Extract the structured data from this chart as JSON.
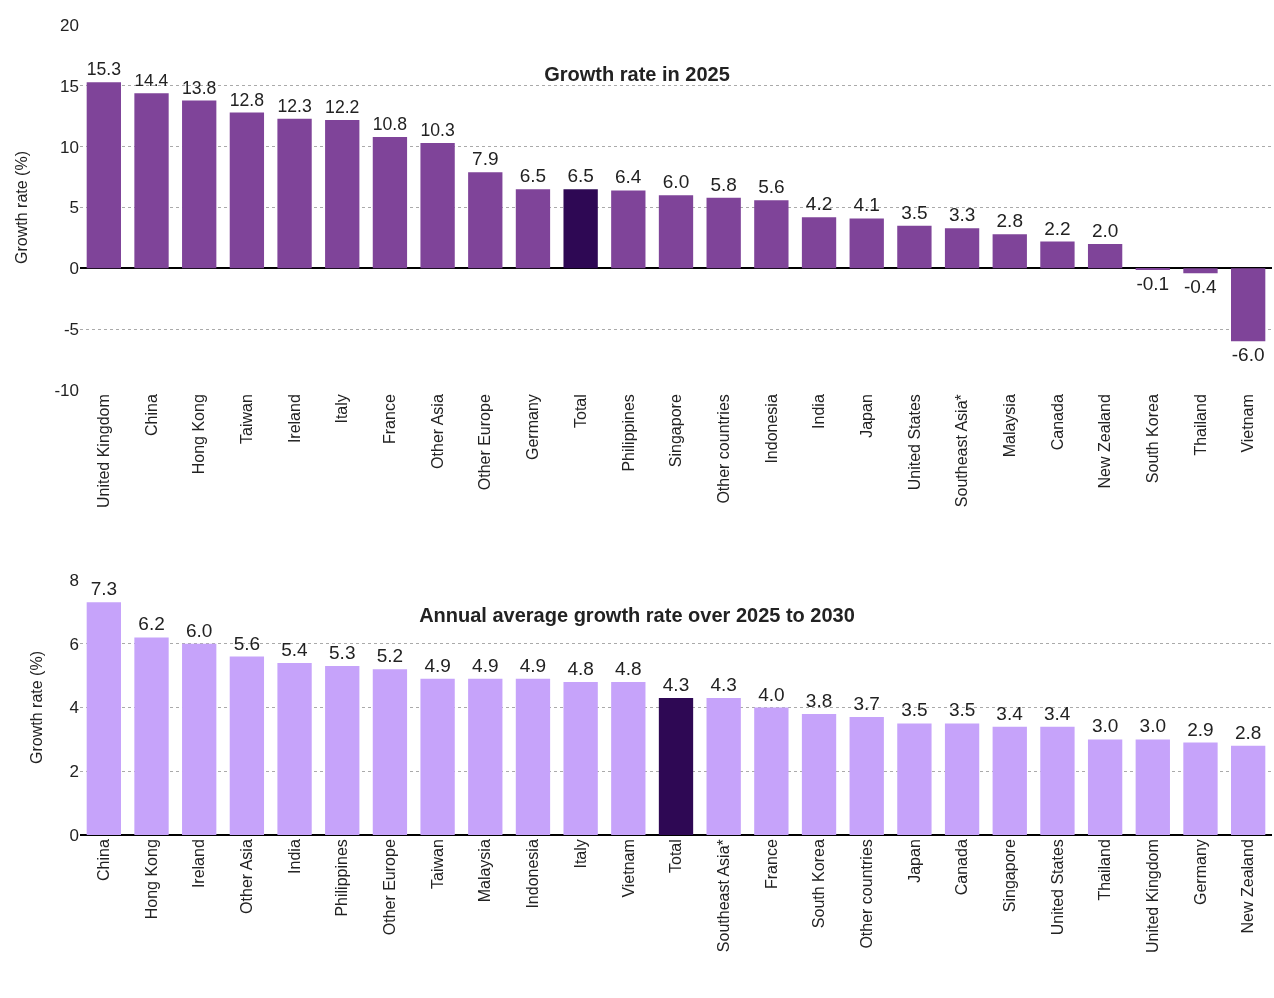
{
  "chart_data": [
    {
      "type": "bar",
      "title": "Growth rate in 2025",
      "ylabel": "Growth rate (%)",
      "categories": [
        "United Kingdom",
        "China",
        "Hong Kong",
        "Taiwan",
        "Ireland",
        "Italy",
        "France",
        "Other Asia",
        "Other Europe",
        "Germany",
        "Total",
        "Philippines",
        "Singapore",
        "Other countries",
        "Indonesia",
        "India",
        "Japan",
        "United States",
        "Southeast Asia*",
        "Malaysia",
        "Canada",
        "New Zealand",
        "South Korea",
        "Thailand",
        "Vietnam"
      ],
      "values": [
        15.3,
        14.4,
        13.8,
        12.8,
        12.3,
        12.2,
        10.8,
        10.3,
        7.9,
        6.5,
        6.5,
        6.4,
        6.0,
        5.8,
        5.6,
        4.2,
        4.1,
        3.5,
        3.3,
        2.8,
        2.2,
        2.0,
        -0.1,
        -0.4,
        -6.0
      ],
      "value_labels": [
        "15.3",
        "14.4",
        "13.8",
        "12.8",
        "12.3",
        "12.2",
        "10.8",
        "10.3",
        "7.9",
        "6.5",
        "6.5",
        "6.4",
        "6.0",
        "5.8",
        "5.6",
        "4.2",
        "4.1",
        "3.5",
        "3.3",
        "2.8",
        "2.2",
        "2.0",
        "-0.1",
        "-0.4",
        "-6.0"
      ],
      "colors": [
        "#7f4499",
        "#7f4499",
        "#7f4499",
        "#7f4499",
        "#7f4499",
        "#7f4499",
        "#7f4499",
        "#7f4499",
        "#7f4499",
        "#7f4499",
        "#2e0854",
        "#7f4499",
        "#7f4499",
        "#7f4499",
        "#7f4499",
        "#7f4499",
        "#7f4499",
        "#7f4499",
        "#7f4499",
        "#7f4499",
        "#7f4499",
        "#7f4499",
        "#7f4499",
        "#7f4499",
        "#7f4499"
      ],
      "ylim": [
        -10,
        20
      ],
      "yticks": [
        -10,
        -5,
        0,
        5,
        10,
        15,
        20
      ],
      "grid": "y"
    },
    {
      "type": "bar",
      "title": "Annual average growth rate over 2025 to 2030",
      "ylabel": "Growth rate (%)",
      "categories": [
        "China",
        "Hong Kong",
        "Ireland",
        "Other Asia",
        "India",
        "Philippines",
        "Other Europe",
        "Taiwan",
        "Malaysia",
        "Indonesia",
        "Italy",
        "Vietnam",
        "Total",
        "Southeast Asia*",
        "France",
        "South Korea",
        "Other countries",
        "Japan",
        "Canada",
        "Singapore",
        "United States",
        "Thailand",
        "United Kingdom",
        "Germany",
        "New Zealand"
      ],
      "values": [
        7.3,
        6.2,
        6.0,
        5.6,
        5.4,
        5.3,
        5.2,
        4.9,
        4.9,
        4.9,
        4.8,
        4.8,
        4.3,
        4.3,
        4.0,
        3.8,
        3.7,
        3.5,
        3.5,
        3.4,
        3.4,
        3.0,
        3.0,
        2.9,
        2.8
      ],
      "value_labels": [
        "7.3",
        "6.2",
        "6.0",
        "5.6",
        "5.4",
        "5.3",
        "5.2",
        "4.9",
        "4.9",
        "4.9",
        "4.8",
        "4.8",
        "4.3",
        "4.3",
        "4.0",
        "3.8",
        "3.7",
        "3.5",
        "3.5",
        "3.4",
        "3.4",
        "3.0",
        "3.0",
        "2.9",
        "2.8"
      ],
      "colors": [
        "#c6a3fa",
        "#c6a3fa",
        "#c6a3fa",
        "#c6a3fa",
        "#c6a3fa",
        "#c6a3fa",
        "#c6a3fa",
        "#c6a3fa",
        "#c6a3fa",
        "#c6a3fa",
        "#c6a3fa",
        "#c6a3fa",
        "#2e0854",
        "#c6a3fa",
        "#c6a3fa",
        "#c6a3fa",
        "#c6a3fa",
        "#c6a3fa",
        "#c6a3fa",
        "#c6a3fa",
        "#c6a3fa",
        "#c6a3fa",
        "#c6a3fa",
        "#c6a3fa",
        "#c6a3fa"
      ],
      "ylim": [
        0,
        8
      ],
      "yticks": [
        0,
        2,
        4,
        6,
        8
      ],
      "grid": "y"
    }
  ]
}
